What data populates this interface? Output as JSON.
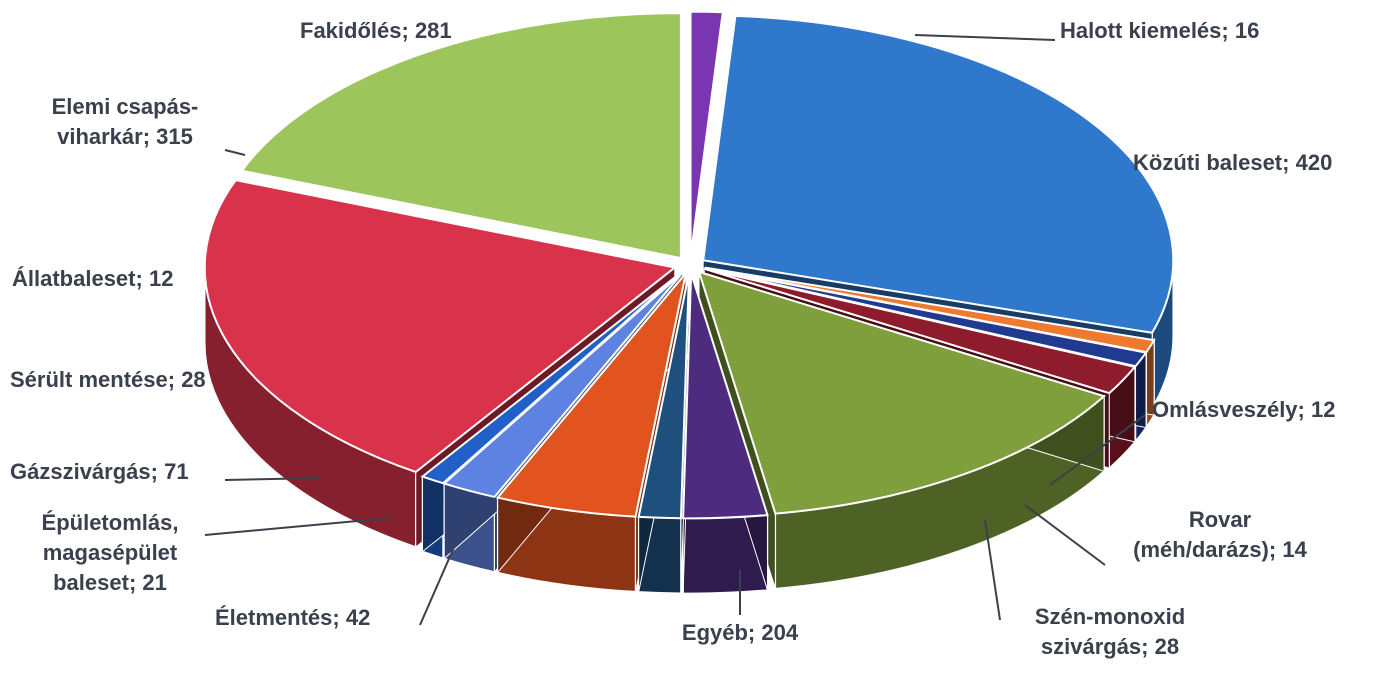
{
  "chart_data": {
    "type": "pie3d",
    "categories": [
      "Halott kiemelés",
      "Közúti baleset",
      "Omlásveszély",
      "Rovar\n(méh/darázs)",
      "Szén-monoxid\nszivárgás",
      "Egyéb",
      "Életmentés",
      "Épületomlás,\nmagasépület\nbaleset",
      "Gázszivárgás",
      "Sérült mentése",
      "Állatbaleset",
      "Elemi csapás-\nviharkár",
      "Fakidőlés"
    ],
    "values": [
      16,
      420,
      12,
      14,
      28,
      204,
      42,
      21,
      71,
      28,
      12,
      315,
      281
    ],
    "colors": [
      "#7a35b0",
      "#2f78cc",
      "#ee7a30",
      "#1f3a8f",
      "#8e1c2c",
      "#7f9e3c",
      "#4d2b7e",
      "#1f4f7c",
      "#e2541f",
      "#5d82e2",
      "#2160c8",
      "#d8334b",
      "#9cc65c"
    ],
    "label_separator": "; "
  }
}
